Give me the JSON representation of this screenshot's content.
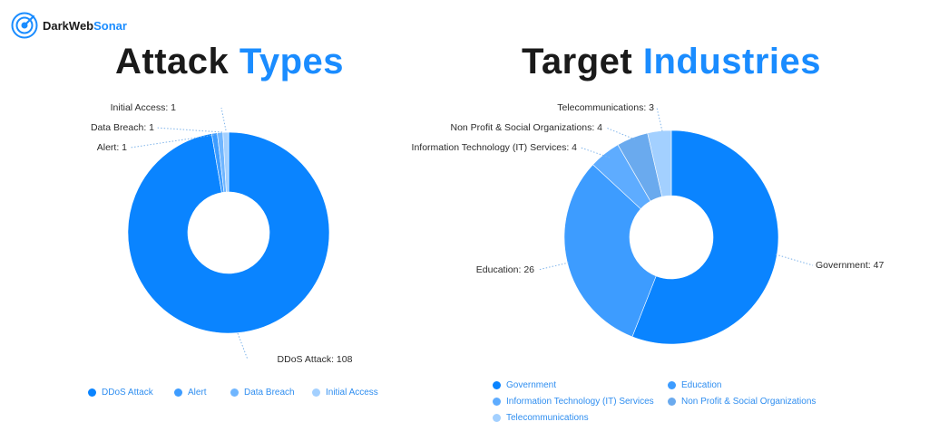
{
  "brand": {
    "name_part1": "DarkWeb",
    "name_part2": "Sonar"
  },
  "chart_data": [
    {
      "type": "pie",
      "title_part1": "Attack",
      "title_part2": "Types",
      "categories": [
        "DDoS Attack",
        "Alert",
        "Data Breach",
        "Initial Access"
      ],
      "values": [
        108,
        1,
        1,
        1
      ],
      "colors": [
        "#0a84ff",
        "#3d9cff",
        "#70b6ff",
        "#a3d0ff"
      ],
      "labels": [
        "DDoS Attack: 108",
        "Alert: 1",
        "Data Breach: 1",
        "Initial Access: 1"
      ],
      "legend": [
        "DDoS Attack",
        "Alert",
        "Data Breach",
        "Initial Access"
      ],
      "legend_position": "bottom"
    },
    {
      "type": "pie",
      "title_part1": "Target",
      "title_part2": "Industries",
      "categories": [
        "Government",
        "Education",
        "Information Technology (IT) Services",
        "Non Profit & Social Organizations",
        "Telecommunications"
      ],
      "values": [
        47,
        26,
        4,
        4,
        3
      ],
      "colors": [
        "#0a84ff",
        "#3d9cff",
        "#5eacff",
        "#6aaaee",
        "#a3d0ff"
      ],
      "labels": [
        "Government: 47",
        "Education: 26",
        "Information Technology (IT) Services: 4",
        "Non Profit & Social Organizations: 4",
        "Telecommunications: 3"
      ],
      "legend": [
        "Government",
        "Education",
        "Information Technology (IT) Services",
        "Non Profit & Social Organizations",
        "Telecommunications"
      ],
      "legend_position": "bottom"
    }
  ]
}
